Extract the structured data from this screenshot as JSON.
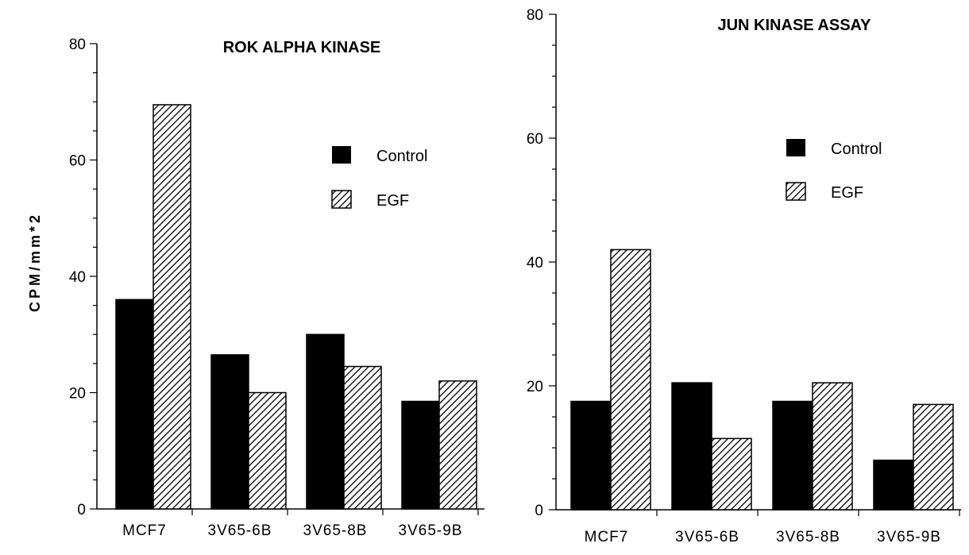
{
  "y_axis_label": "CPM/mm*2",
  "colors": {
    "control": "#000000",
    "egf_hatch": "#000000",
    "background": "#ffffff"
  },
  "chart_data": [
    {
      "type": "bar",
      "title": "ROK ALPHA KINASE",
      "categories": [
        "MCF7",
        "3V65-6B",
        "3V65-8B",
        "3V65-9B"
      ],
      "series": [
        {
          "name": "Control",
          "values": [
            36,
            26.5,
            30,
            18.5
          ]
        },
        {
          "name": "EGF",
          "values": [
            69.5,
            20,
            24.5,
            22
          ]
        }
      ],
      "ylim": [
        0,
        80
      ],
      "yticks": [
        0,
        20,
        40,
        60,
        80
      ],
      "ylabel": "CPM/mm*2",
      "legend_position": "top-right",
      "grid": false
    },
    {
      "type": "bar",
      "title": "JUN KINASE ASSAY",
      "categories": [
        "MCF7",
        "3V65-6B",
        "3V65-8B",
        "3V65-9B"
      ],
      "series": [
        {
          "name": "Control",
          "values": [
            17.5,
            20.5,
            17.5,
            8
          ]
        },
        {
          "name": "EGF",
          "values": [
            42,
            11.5,
            20.5,
            17
          ]
        }
      ],
      "ylim": [
        0,
        80
      ],
      "yticks": [
        0,
        20,
        40,
        60,
        80
      ],
      "legend_position": "top-right",
      "grid": false
    }
  ]
}
